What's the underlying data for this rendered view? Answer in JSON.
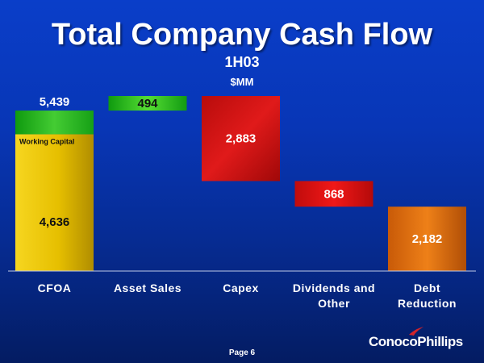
{
  "title": "Total Company Cash Flow",
  "subtitle": "1H03",
  "units": "$MM",
  "page_label": "Page 6",
  "logo": {
    "text": "ConocoPhillips",
    "mark_color": "#d2232a"
  },
  "colors": {
    "cfoa": "#e8c200",
    "working_capital": "#33bb22",
    "asset_sales": "#33bb22",
    "capex": "#d01515",
    "dividends": "#e01010",
    "debt": "#e07010"
  },
  "chart_data": {
    "type": "bar",
    "subtype": "waterfall",
    "title": "Total Company Cash Flow",
    "subtitle": "1H03",
    "ylabel": "$MM",
    "ylim": [
      0,
      6000
    ],
    "grid": false,
    "categories": [
      "CFOA",
      "Asset Sales",
      "Capex",
      "Dividends and Other",
      "Debt Reduction"
    ],
    "category_lines": [
      [
        "CFOA"
      ],
      [
        "Asset Sales"
      ],
      [
        "Capex"
      ],
      [
        "Dividends and",
        "Other"
      ],
      [
        "Debt",
        "Reduction"
      ]
    ],
    "bars": [
      {
        "category": "CFOA",
        "segments": [
          {
            "name": "",
            "start": 0,
            "end": 4636,
            "label": "4,636",
            "color_key": "cfoa"
          },
          {
            "name": "Working Capital",
            "start": 4636,
            "end": 5439,
            "label": "",
            "color_key": "working_capital"
          }
        ],
        "total_label": "5,439"
      },
      {
        "category": "Asset Sales",
        "segments": [
          {
            "name": "",
            "start": 5439,
            "end": 5933,
            "label": "494",
            "color_key": "asset_sales"
          }
        ],
        "total_label": ""
      },
      {
        "category": "Capex",
        "segments": [
          {
            "name": "",
            "start": 3050,
            "end": 5933,
            "label": "2,883",
            "color_key": "capex"
          }
        ],
        "total_label": ""
      },
      {
        "category": "Dividends and Other",
        "segments": [
          {
            "name": "",
            "start": 2182,
            "end": 3050,
            "label": "868",
            "color_key": "dividends"
          }
        ],
        "total_label": ""
      },
      {
        "category": "Debt Reduction",
        "segments": [
          {
            "name": "",
            "start": 0,
            "end": 2182,
            "label": "2,182",
            "color_key": "debt"
          }
        ],
        "total_label": ""
      }
    ]
  }
}
